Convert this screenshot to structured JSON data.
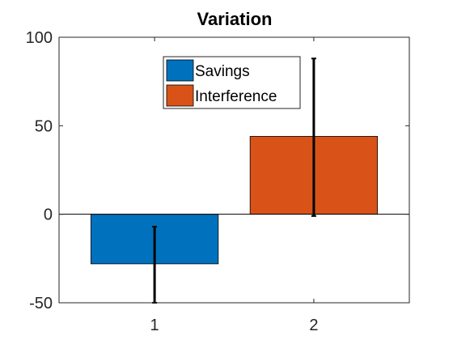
{
  "chart_data": {
    "type": "bar",
    "title": "Variation",
    "xlabel": "",
    "ylabel": "",
    "categories": [
      "1",
      "2"
    ],
    "bars": [
      {
        "category": "1",
        "series": "Savings",
        "value": -28,
        "error_low": -50,
        "error_high": -7,
        "color": "#0072BD"
      },
      {
        "category": "2",
        "series": "Interference",
        "value": 44,
        "error_low": -1,
        "error_high": 88,
        "color": "#D95319"
      }
    ],
    "ylim": [
      -50,
      100
    ],
    "yticks": [
      -50,
      0,
      50,
      100
    ],
    "grid": false,
    "legend": {
      "position": "top-center",
      "entries": [
        {
          "name": "Savings",
          "color": "#0072BD"
        },
        {
          "name": "Interference",
          "color": "#D95319"
        }
      ]
    }
  }
}
